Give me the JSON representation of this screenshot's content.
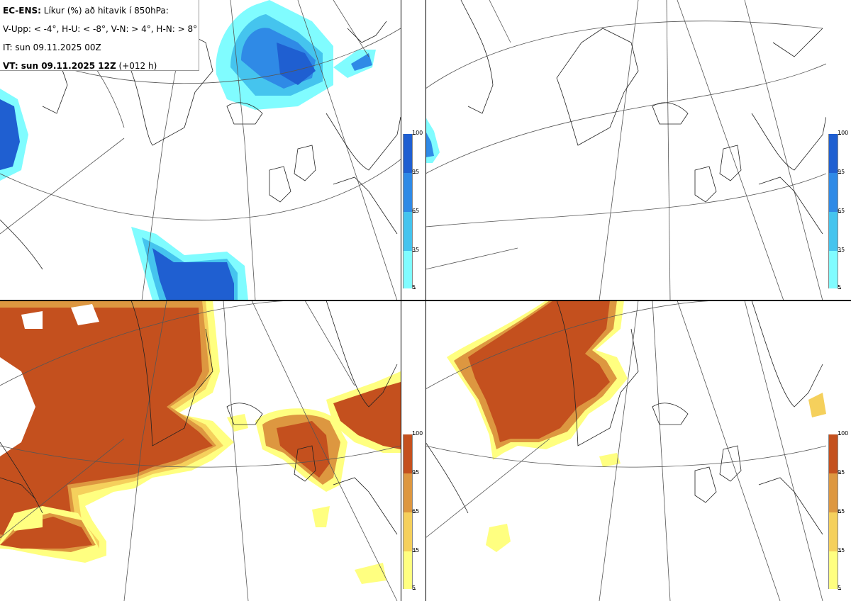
{
  "header": {
    "model": "EC-ENS:",
    "title": "Líkur (%) að hitavik í 850hPa:",
    "thresholds": "V-Upp: < -4°, H-U: < -8°, V-N: > 4°, H-N: > 8°",
    "init_time": "IT: sun 09.11.2025 00Z",
    "valid_label": "VT: sun 09.11.2025 12Z",
    "lead": "(+012 h)"
  },
  "colorbars": {
    "ticks": [
      "100",
      "95",
      "65",
      "35",
      "5"
    ],
    "cold_colors": [
      "#1f5fd1",
      "#2f8ae6",
      "#45c4ee",
      "#80fcff"
    ],
    "warm_colors": [
      "#c4501e",
      "#dd9740",
      "#f5d05c",
      "#ffff80"
    ]
  },
  "panels": [
    {
      "id": "upper-left",
      "variable": "cold anomaly < -4°"
    },
    {
      "id": "upper-right",
      "variable": "cold anomaly < -8°"
    },
    {
      "id": "lower-left",
      "variable": "warm anomaly > 4°"
    },
    {
      "id": "lower-right",
      "variable": "warm anomaly > 8°"
    }
  ]
}
